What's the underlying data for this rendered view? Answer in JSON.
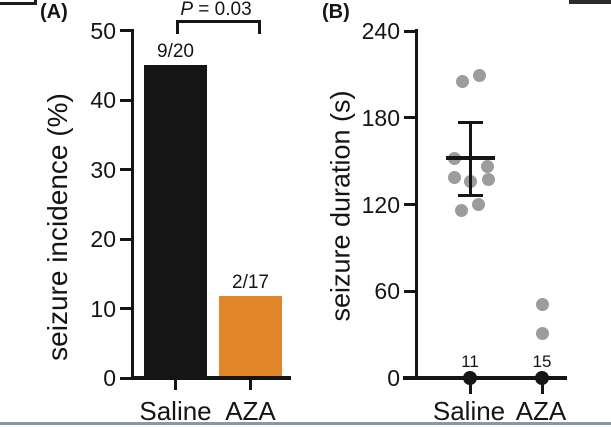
{
  "chart_data": [
    {
      "type": "bar",
      "panel_label": "(A)",
      "title": "",
      "ylabel": "seizure incidence (%)",
      "xlabel": "",
      "ylim": [
        0,
        50
      ],
      "yticks": [
        0,
        10,
        20,
        30,
        40,
        50
      ],
      "grid": false,
      "categories": [
        "Saline",
        "AZA"
      ],
      "values": [
        45,
        11.8
      ],
      "bar_labels": [
        "9/20",
        "2/17"
      ],
      "bar_colors": [
        "#151515",
        "#E2862C"
      ],
      "significance": {
        "p_italic": "P",
        "p_rest": " = 0.03",
        "between": [
          "Saline",
          "AZA"
        ]
      }
    },
    {
      "type": "scatter",
      "panel_label": "(B)",
      "title": "",
      "ylabel": "seizure duration (s)",
      "xlabel": "",
      "ylim": [
        0,
        240
      ],
      "yticks": [
        0,
        60,
        120,
        180,
        240
      ],
      "grid": false,
      "categories": [
        "Saline",
        "AZA"
      ],
      "dot_color": "#9C9C9C",
      "zero_dot_color": "#151515",
      "series": [
        {
          "name": "Saline",
          "points": [
            {
              "v": 205,
              "dx": -8
            },
            {
              "v": 209,
              "dx": 9
            },
            {
              "v": 152,
              "dx": -16
            },
            {
              "v": 146,
              "dx": 17
            },
            {
              "v": 139,
              "dx": -16
            },
            {
              "v": 136,
              "dx": 0
            },
            {
              "v": 137,
              "dx": 18
            },
            {
              "v": 120,
              "dx": 8
            },
            {
              "v": 116,
              "dx": -9
            }
          ],
          "mean": 152,
          "err_high": 177,
          "err_low": 126,
          "zero_count": 11
        },
        {
          "name": "AZA",
          "points": [
            {
              "v": 51,
              "dx": 0
            },
            {
              "v": 31,
              "dx": 0
            }
          ],
          "zero_count": 15
        }
      ]
    }
  ]
}
